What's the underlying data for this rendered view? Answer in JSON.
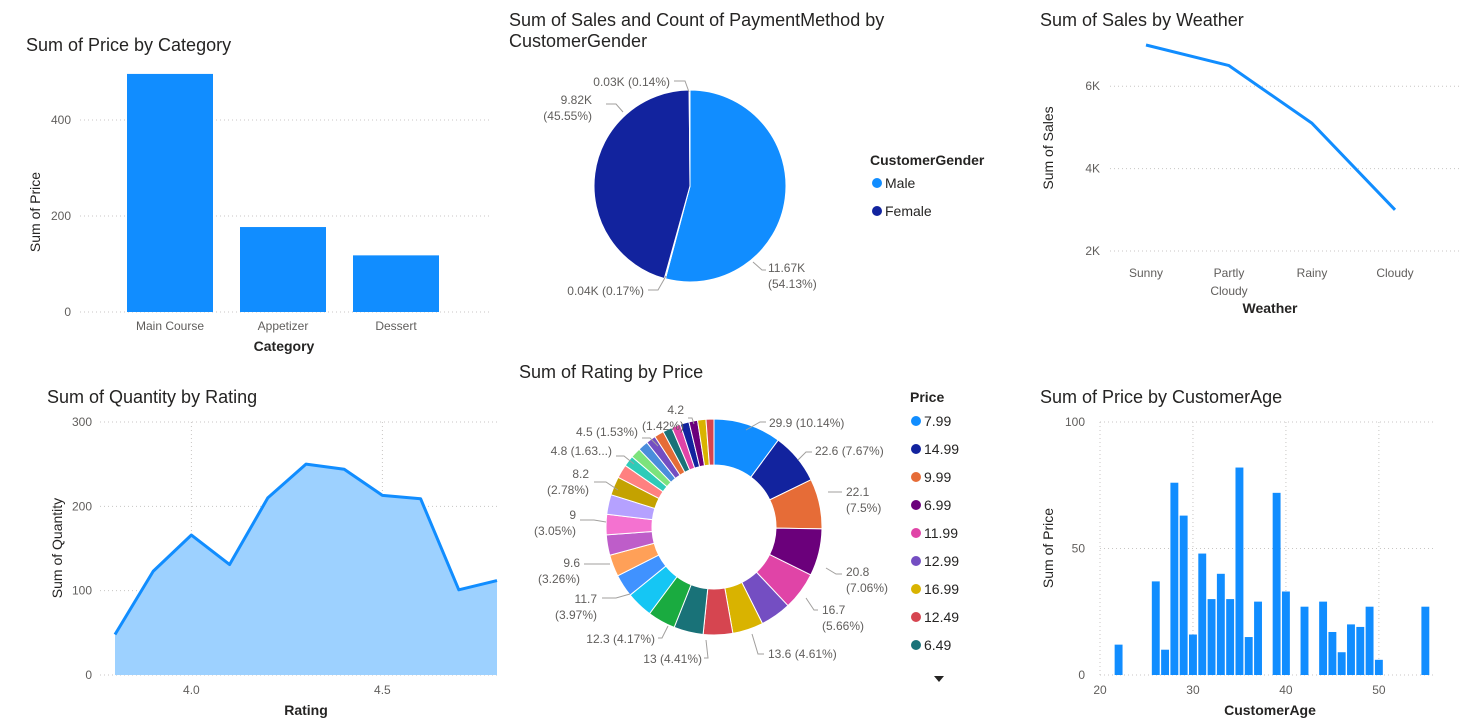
{
  "chart_data": [
    {
      "type": "bar",
      "title": "Sum of Price by Category",
      "xlabel": "Category",
      "ylabel": "Sum of Price",
      "categories": [
        "Main Course",
        "Appetizer",
        "Dessert"
      ],
      "values": [
        496,
        177,
        118
      ],
      "ylim": [
        0,
        500
      ],
      "yticks": [
        "0",
        "200",
        "400"
      ],
      "ytick_values": [
        0,
        200,
        400
      ],
      "color": "#118DFF",
      "grid": true
    },
    {
      "type": "pie",
      "title": "Sum of Sales and Count of PaymentMethod by CustomerGender",
      "legend_title": "CustomerGender",
      "legend_position": "right",
      "slices": [
        {
          "name": "Male",
          "value": 11.67,
          "label1": "11.67K",
          "label2": "(54.13%)",
          "color": "#118DFF"
        },
        {
          "name": "",
          "value": 0.04,
          "label1": "0.04K (0.17%)",
          "label2": "",
          "color": "#118DFF"
        },
        {
          "name": "Female",
          "value": 9.82,
          "label1": "9.82K",
          "label2": "(45.55%)",
          "color": "#12239E"
        },
        {
          "name": "",
          "value": 0.03,
          "label1": "0.03K (0.14%)",
          "label2": "",
          "color": "#12239E"
        }
      ],
      "legend": [
        {
          "name": "Male",
          "color": "#118DFF"
        },
        {
          "name": "Female",
          "color": "#12239E"
        }
      ]
    },
    {
      "type": "line",
      "title": "Sum of Sales by Weather",
      "xlabel": "Weather",
      "ylabel": "Sum of Sales",
      "categories": [
        [
          "Sunny"
        ],
        [
          "Partly",
          "Cloudy"
        ],
        [
          "Rainy"
        ],
        [
          "Cloudy"
        ]
      ],
      "values": [
        7000,
        6500,
        5100,
        3000
      ],
      "ylim": [
        2000,
        7000
      ],
      "yticks": [
        "2K",
        "4K",
        "6K"
      ],
      "ytick_values": [
        2000,
        4000,
        6000
      ],
      "color": "#118DFF",
      "grid": true
    },
    {
      "type": "area",
      "title": "Sum of Quantity by Rating",
      "xlabel": "Rating",
      "ylabel": "Sum of Quantity",
      "x": [
        3.8,
        3.9,
        4.0,
        4.1,
        4.2,
        4.3,
        4.4,
        4.5,
        4.6,
        4.7,
        4.8
      ],
      "values": [
        48,
        123,
        166,
        131,
        210,
        250,
        244,
        213,
        209,
        101,
        112
      ],
      "xlim": [
        3.8,
        4.8
      ],
      "ylim": [
        0,
        300
      ],
      "xticks": [
        "4.0",
        "4.5"
      ],
      "xtick_values": [
        4.0,
        4.5
      ],
      "yticks": [
        "0",
        "100",
        "200",
        "300"
      ],
      "ytick_values": [
        0,
        100,
        200,
        300
      ],
      "color": "#118DFF",
      "fill": "#9DD1FF",
      "grid": true
    },
    {
      "type": "pie",
      "title": "Sum of Rating by Price",
      "legend_title": "Price",
      "legend_position": "right",
      "slices": [
        {
          "name": "7.99",
          "value": 29.9,
          "label1": "29.9 (10.14%)",
          "label2": "",
          "color": "#118DFF"
        },
        {
          "name": "14.99",
          "value": 22.6,
          "label1": "22.6 (7.67%)",
          "label2": "",
          "color": "#12239E"
        },
        {
          "name": "9.99",
          "value": 22.1,
          "label1": "22.1",
          "label2": "(7.5%)",
          "color": "#E66C37"
        },
        {
          "name": "6.99",
          "value": 20.8,
          "label1": "20.8",
          "label2": "(7.06%)",
          "color": "#6B007B"
        },
        {
          "name": "11.99",
          "value": 16.7,
          "label1": "16.7",
          "label2": "(5.66%)",
          "color": "#E044A7"
        },
        {
          "name": "12.99",
          "value": 13.6,
          "label1": "13.6 (4.61%)",
          "label2": "",
          "color": "#744EC2"
        },
        {
          "name": "16.99",
          "value": 13.6,
          "label1": "",
          "label2": "",
          "color": "#D9B300"
        },
        {
          "name": "12.49",
          "value": 13.0,
          "label1": "",
          "label2": "",
          "color": "#D64550"
        },
        {
          "name": "6.49",
          "value": 13.0,
          "label1": "13 (4.41%)",
          "label2": "",
          "color": "#197278"
        },
        {
          "name": "",
          "value": 12.3,
          "label1": "12.3 (4.17%)",
          "label2": "",
          "color": "#1AAB40"
        },
        {
          "name": "",
          "value": 11.7,
          "label1": "11.7",
          "label2": "(3.97%)",
          "color": "#15C6F4"
        },
        {
          "name": "",
          "value": 10.0,
          "label1": "",
          "label2": "",
          "color": "#4092FF"
        },
        {
          "name": "",
          "value": 9.6,
          "label1": "9.6",
          "label2": "(3.26%)",
          "color": "#FFA058"
        },
        {
          "name": "",
          "value": 9.0,
          "label1": "",
          "label2": "",
          "color": "#BE5DC9"
        },
        {
          "name": "",
          "value": 9.0,
          "label1": "9",
          "label2": "(3.05%)",
          "color": "#F472D0"
        },
        {
          "name": "",
          "value": 8.7,
          "label1": "",
          "label2": "",
          "color": "#B5A1FF"
        },
        {
          "name": "",
          "value": 8.2,
          "label1": "8.2",
          "label2": "(2.78%)",
          "color": "#C4A200"
        },
        {
          "name": "",
          "value": 6.0,
          "label1": "",
          "label2": "",
          "color": "#FF8080"
        },
        {
          "name": "",
          "value": 4.8,
          "label1": "4.8 (1.63...)",
          "label2": "",
          "color": "#2FCBB8"
        },
        {
          "name": "",
          "value": 4.5,
          "label1": "",
          "label2": "",
          "color": "#7CE37C"
        },
        {
          "name": "",
          "value": 4.5,
          "label1": "4.5 (1.53%)",
          "label2": "",
          "color": "#4A8DDC"
        },
        {
          "name": "",
          "value": 4.3,
          "label1": "",
          "label2": "",
          "color": "#744EC2"
        },
        {
          "name": "",
          "value": 4.2,
          "label1": "4.2",
          "label2": "(1.42%)",
          "color": "#E66C37"
        },
        {
          "name": "",
          "value": 4.1,
          "label1": "",
          "label2": "",
          "color": "#197278"
        },
        {
          "name": "",
          "value": 4.0,
          "label1": "",
          "label2": "",
          "color": "#E044A7"
        },
        {
          "name": "",
          "value": 3.9,
          "label1": "",
          "label2": "",
          "color": "#12239E"
        },
        {
          "name": "",
          "value": 3.8,
          "label1": "",
          "label2": "",
          "color": "#6B007B"
        },
        {
          "name": "",
          "value": 3.7,
          "label1": "",
          "label2": "",
          "color": "#D9B300"
        },
        {
          "name": "",
          "value": 3.5,
          "label1": "",
          "label2": "",
          "color": "#D64550"
        }
      ],
      "legend": [
        {
          "name": "7.99",
          "color": "#118DFF"
        },
        {
          "name": "14.99",
          "color": "#12239E"
        },
        {
          "name": "9.99",
          "color": "#E66C37"
        },
        {
          "name": "6.99",
          "color": "#6B007B"
        },
        {
          "name": "11.99",
          "color": "#E044A7"
        },
        {
          "name": "12.99",
          "color": "#744EC2"
        },
        {
          "name": "16.99",
          "color": "#D9B300"
        },
        {
          "name": "12.49",
          "color": "#D64550"
        },
        {
          "name": "6.49",
          "color": "#197278"
        }
      ]
    },
    {
      "type": "bar",
      "title": "Sum of Price by CustomerAge",
      "xlabel": "CustomerAge",
      "ylabel": "Sum of Price",
      "x": [
        22,
        26,
        27,
        28,
        29,
        30,
        31,
        32,
        33,
        34,
        35,
        36,
        37,
        39,
        40,
        42,
        44,
        45,
        46,
        47,
        48,
        49,
        50,
        55
      ],
      "values": [
        12,
        37,
        10,
        76,
        63,
        16,
        48,
        30,
        40,
        30,
        82,
        15,
        29,
        72,
        33,
        27,
        29,
        17,
        9,
        20,
        19,
        27,
        6,
        27
      ],
      "xlim": [
        20,
        55.5
      ],
      "ylim": [
        0,
        100
      ],
      "xticks": [
        "20",
        "30",
        "40",
        "50"
      ],
      "xtick_values": [
        20,
        30,
        40,
        50
      ],
      "yticks": [
        "0",
        "50",
        "100"
      ],
      "ytick_values": [
        0,
        50,
        100
      ],
      "color": "#118DFF",
      "grid": true
    }
  ]
}
